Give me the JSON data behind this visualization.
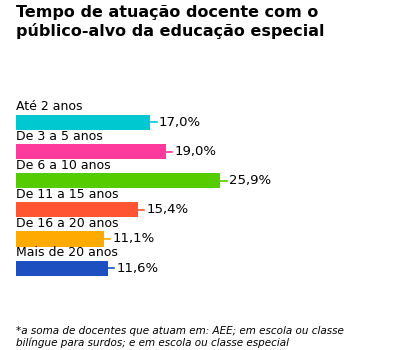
{
  "title": "Tempo de atuação docente com o\npúblico-alvo da educação especial",
  "categories": [
    "Até 2 anos",
    "De 3 a 5 anos",
    "De 6 a 10 anos",
    "De 11 a 15 anos",
    "De 16 a 20 anos",
    "Mais de 20 anos"
  ],
  "values": [
    17.0,
    19.0,
    25.9,
    15.4,
    11.1,
    11.6
  ],
  "labels": [
    "17,0%",
    "19,0%",
    "25,9%",
    "15,4%",
    "11,1%",
    "11,6%"
  ],
  "colors": [
    "#00C8D0",
    "#FF3A9D",
    "#55CC00",
    "#FF5533",
    "#FFAA00",
    "#1E4FC0"
  ],
  "footnote": "*a soma de docentes que atuam em: AEE; em escola ou classe\nbilíngue para surdos; e em escola ou classe especial",
  "xlim_max": 31.5,
  "bar_height": 0.52,
  "title_fontsize": 11.5,
  "label_fontsize": 9.5,
  "cat_fontsize": 9.0,
  "footnote_fontsize": 7.5,
  "bg_color": "#FFFFFF"
}
